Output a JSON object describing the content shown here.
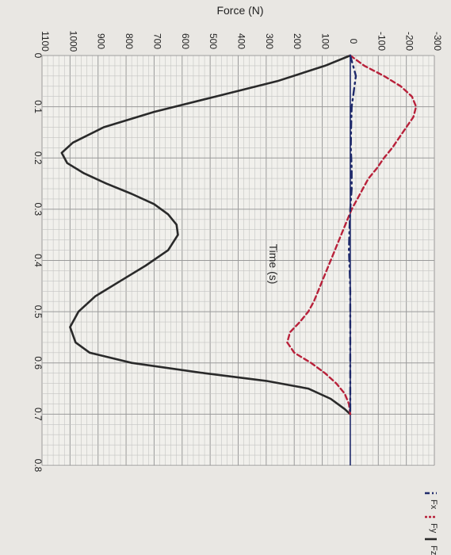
{
  "chart_data": {
    "type": "line",
    "title": "",
    "xlabel": "Time (s)",
    "ylabel": "Force (N)",
    "xlim": [
      0,
      0.8
    ],
    "ylim": [
      -300,
      1100
    ],
    "x_ticks": [
      "0",
      "0.1",
      "0.2",
      "0.3",
      "0.4",
      "0.5",
      "0.6",
      "0.7",
      "0.8"
    ],
    "y_ticks": [
      "-300",
      "-200",
      "-100",
      "0",
      "100",
      "200",
      "300",
      "400",
      "500",
      "600",
      "700",
      "800",
      "900",
      "1000",
      "1100"
    ],
    "grid": true,
    "legend_position": "bottom-right",
    "series": [
      {
        "name": "Fz",
        "style": "solid",
        "color": "#2a2a2a",
        "x": [
          0.0,
          0.02,
          0.05,
          0.08,
          0.11,
          0.14,
          0.17,
          0.19,
          0.21,
          0.23,
          0.25,
          0.27,
          0.29,
          0.31,
          0.33,
          0.35,
          0.38,
          0.41,
          0.44,
          0.47,
          0.5,
          0.53,
          0.56,
          0.58,
          0.6,
          0.62,
          0.635,
          0.65,
          0.67,
          0.69,
          0.7
        ],
        "y": [
          0,
          90,
          260,
          480,
          700,
          880,
          990,
          1030,
          1010,
          950,
          870,
          780,
          700,
          650,
          620,
          615,
          650,
          730,
          820,
          910,
          970,
          1000,
          980,
          930,
          780,
          520,
          300,
          150,
          70,
          20,
          0
        ]
      },
      {
        "name": "Fy",
        "style": "dashed",
        "color": "#b8213a",
        "x": [
          0.0,
          0.02,
          0.04,
          0.06,
          0.08,
          0.1,
          0.12,
          0.14,
          0.16,
          0.18,
          0.2,
          0.22,
          0.24,
          0.26,
          0.28,
          0.3,
          0.32,
          0.34,
          0.36,
          0.38,
          0.4,
          0.42,
          0.44,
          0.46,
          0.48,
          0.5,
          0.52,
          0.54,
          0.56,
          0.58,
          0.6,
          0.62,
          0.64,
          0.66,
          0.68,
          0.7
        ],
        "y": [
          0,
          -50,
          -120,
          -180,
          -220,
          -235,
          -225,
          -200,
          -175,
          -150,
          -120,
          -95,
          -65,
          -45,
          -25,
          -5,
          10,
          25,
          40,
          55,
          70,
          85,
          100,
          115,
          130,
          150,
          180,
          215,
          225,
          200,
          140,
          90,
          50,
          20,
          5,
          0
        ]
      },
      {
        "name": "Fx",
        "style": "dash-dot",
        "color": "#1f2a6b",
        "x": [
          0.0,
          0.02,
          0.04,
          0.06,
          0.08,
          0.1,
          0.14,
          0.18,
          0.22,
          0.26,
          0.3,
          0.34,
          0.38,
          0.42,
          0.46,
          0.5,
          0.54,
          0.58,
          0.62,
          0.66,
          0.7
        ],
        "y": [
          0,
          -10,
          -20,
          -15,
          -10,
          -5,
          -3,
          -2,
          -5,
          -5,
          0,
          3,
          5,
          2,
          0,
          0,
          0,
          0,
          0,
          0,
          0
        ]
      }
    ]
  }
}
